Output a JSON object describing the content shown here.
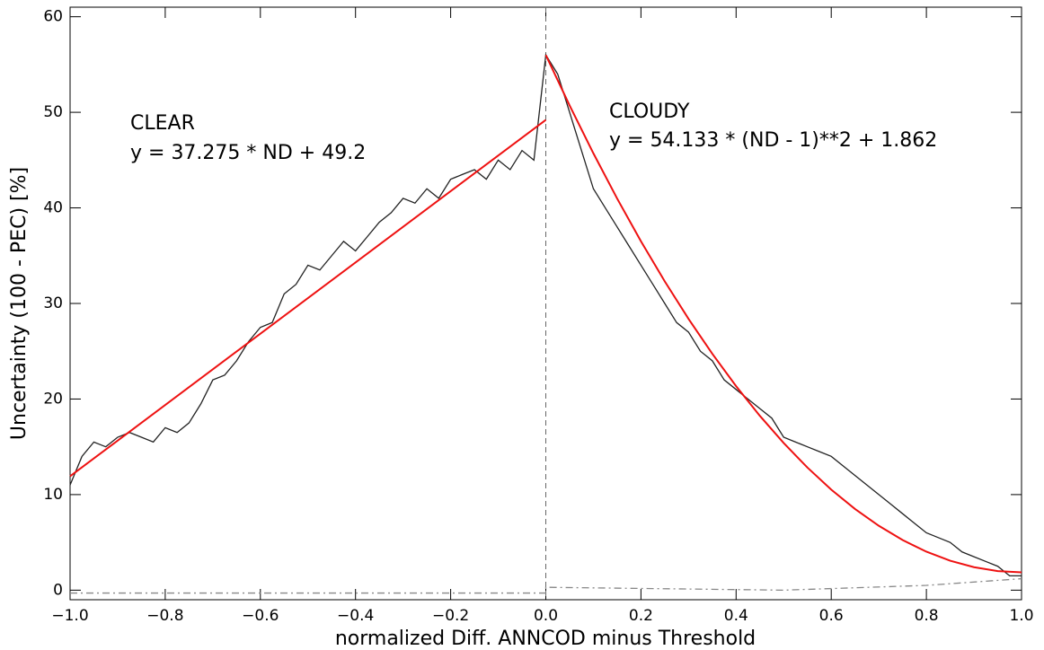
{
  "chart_data": {
    "type": "line",
    "xlabel": "normalized Diff. ANNCOD minus Threshold",
    "ylabel": "Uncertainty (100 - PEC) [%]",
    "xlim": [
      -1.0,
      1.0
    ],
    "ylim": [
      -1,
      61
    ],
    "xticks": [
      {
        "value": -1.0,
        "label": "−1.0"
      },
      {
        "value": -0.8,
        "label": "−0.8"
      },
      {
        "value": -0.6,
        "label": "−0.6"
      },
      {
        "value": -0.4,
        "label": "−0.4"
      },
      {
        "value": -0.2,
        "label": "−0.2"
      },
      {
        "value": 0,
        "label": "0.0"
      },
      {
        "value": 0.2,
        "label": "0.2"
      },
      {
        "value": 0.4,
        "label": "0.4"
      },
      {
        "value": 0.6,
        "label": "0.6"
      },
      {
        "value": 0.8,
        "label": "0.8"
      },
      {
        "value": 1.0,
        "label": "1.0"
      }
    ],
    "yticks": [
      0,
      10,
      20,
      30,
      40,
      50,
      60
    ],
    "vline": 0,
    "annotations": [
      "CLEAR",
      "y = 37.275 * ND + 49.2",
      "CLOUDY",
      "y = 54.133 * (ND - 1)**2 + 1.862"
    ],
    "series": [
      {
        "color": "#222222",
        "style": "solid",
        "x": [
          -1.0,
          -0.975,
          -0.95,
          -0.925,
          -0.9,
          -0.875,
          -0.85,
          -0.825,
          -0.8,
          -0.775,
          -0.75,
          -0.725,
          -0.7,
          -0.675,
          -0.65,
          -0.625,
          -0.6,
          -0.575,
          -0.55,
          -0.525,
          -0.5,
          -0.475,
          -0.45,
          -0.425,
          -0.4,
          -0.375,
          -0.35,
          -0.325,
          -0.3,
          -0.275,
          -0.25,
          -0.225,
          -0.2,
          -0.175,
          -0.15,
          -0.125,
          -0.1,
          -0.075,
          -0.05,
          -0.025,
          0,
          0.025,
          0.05,
          0.075,
          0.1,
          0.125,
          0.15,
          0.175,
          0.2,
          0.225,
          0.25,
          0.275,
          0.3,
          0.325,
          0.35,
          0.375,
          0.4,
          0.425,
          0.45,
          0.475,
          0.5,
          0.525,
          0.55,
          0.575,
          0.6,
          0.625,
          0.65,
          0.675,
          0.7,
          0.725,
          0.75,
          0.775,
          0.8,
          0.825,
          0.85,
          0.875,
          0.9,
          0.925,
          0.95,
          0.975,
          1.0
        ],
        "values": [
          11,
          14,
          15.5,
          15,
          16,
          16.5,
          16,
          15.5,
          17,
          16.5,
          17.5,
          19.5,
          22,
          22.5,
          24,
          26,
          27.5,
          28,
          31,
          32,
          34,
          33.5,
          35,
          36.5,
          35.5,
          37,
          38.5,
          39.5,
          41,
          40.5,
          42,
          41,
          43,
          43.5,
          44,
          43,
          45,
          44,
          46,
          45,
          56,
          54,
          50,
          46,
          42,
          40,
          38,
          36,
          34,
          32,
          30,
          28,
          27,
          25,
          24,
          22,
          21,
          20,
          19,
          18,
          16,
          15.5,
          15,
          14.5,
          14,
          13,
          12,
          11,
          10,
          9,
          8,
          7,
          6,
          5.5,
          5,
          4,
          3.5,
          3,
          2.5,
          1.5,
          1.5
        ]
      },
      {
        "color": "#ee1111",
        "style": "solid",
        "x": [
          -1.0,
          0
        ],
        "values": [
          11.925,
          49.2
        ]
      },
      {
        "color": "#ee1111",
        "style": "solid",
        "x": [
          0,
          0.05,
          0.1,
          0.15,
          0.2,
          0.25,
          0.3,
          0.35,
          0.4,
          0.45,
          0.5,
          0.55,
          0.6,
          0.65,
          0.7,
          0.75,
          0.8,
          0.85,
          0.9,
          0.95,
          1.0
        ],
        "values": [
          55.995,
          50.717,
          45.71,
          40.973,
          36.507,
          32.312,
          28.387,
          24.733,
          21.35,
          18.237,
          15.395,
          12.824,
          10.523,
          8.493,
          6.734,
          5.245,
          4.027,
          3.08,
          2.403,
          1.997,
          1.862
        ]
      },
      {
        "color": "#888888",
        "style": "dashdot",
        "x": [
          -1.0,
          0,
          0,
          0.5,
          0.8,
          1.0
        ],
        "values": [
          -0.3,
          -0.3,
          0.3,
          0.0,
          0.5,
          1.2
        ]
      }
    ]
  }
}
